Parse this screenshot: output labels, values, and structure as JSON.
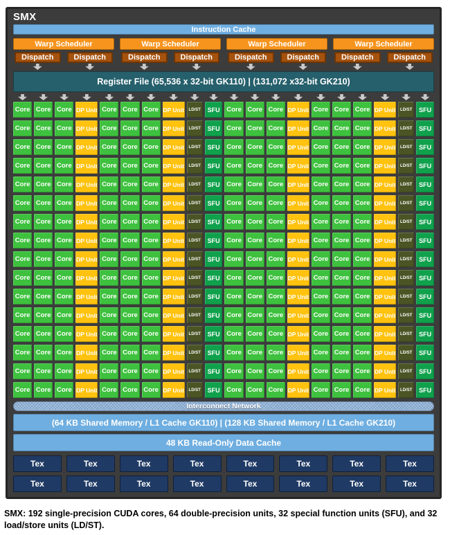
{
  "panel": {
    "title": "SMX",
    "instruction_cache": "Instruction Cache",
    "warp_scheduler_label": "Warp Scheduler",
    "warp_scheduler_count": 4,
    "dispatch_label": "Dispatch",
    "dispatch_per_scheduler": 2,
    "register_file": "Register File (65,536 x 32-bit GK110) | (131,072 x32-bit GK210)",
    "interconnect": "Interconnect Network",
    "shared_memory": "(64 KB Shared Memory / L1 Cache GK110) | (128 KB Shared Memory / L1 Cache GK210)",
    "readonly_cache": "48 KB Read-Only Data Cache",
    "tex_label": "Tex",
    "tex_rows": 2,
    "tex_cols": 8
  },
  "grid": {
    "rows": 16,
    "column_arrow_count": 20,
    "row_pattern": [
      "core",
      "core",
      "core",
      "dp",
      "core",
      "core",
      "core",
      "dp",
      "ldst",
      "sfu",
      "core",
      "core",
      "core",
      "dp",
      "core",
      "core",
      "core",
      "dp",
      "ldst",
      "sfu"
    ],
    "cell_types": {
      "core": {
        "label": "Core",
        "color": "#3EC13E"
      },
      "dp": {
        "label": "DP Unit",
        "color": "#FFC20E"
      },
      "ldst": {
        "label": "LD/ST",
        "color": "#4A5424"
      },
      "sfu": {
        "label": "SFU",
        "color": "#0FA14C"
      }
    }
  },
  "colors": {
    "panel_bg": "#3C3C3C",
    "panel_border": "#252525",
    "blue_bar": "#6FAEE0",
    "warp_orange": "#F7941E",
    "dispatch_brown": "#A5520E",
    "register_teal": "#26606C",
    "interconnect_blue": "#8FB3D9",
    "tex_navy": "#1F3A64",
    "arrow_gray": "#C9C9C9"
  },
  "caption": "SMX: 192 single-precision CUDA cores, 64 double-precision units, 32 special function units (SFU), and 32 load/store units (LD/ST)."
}
